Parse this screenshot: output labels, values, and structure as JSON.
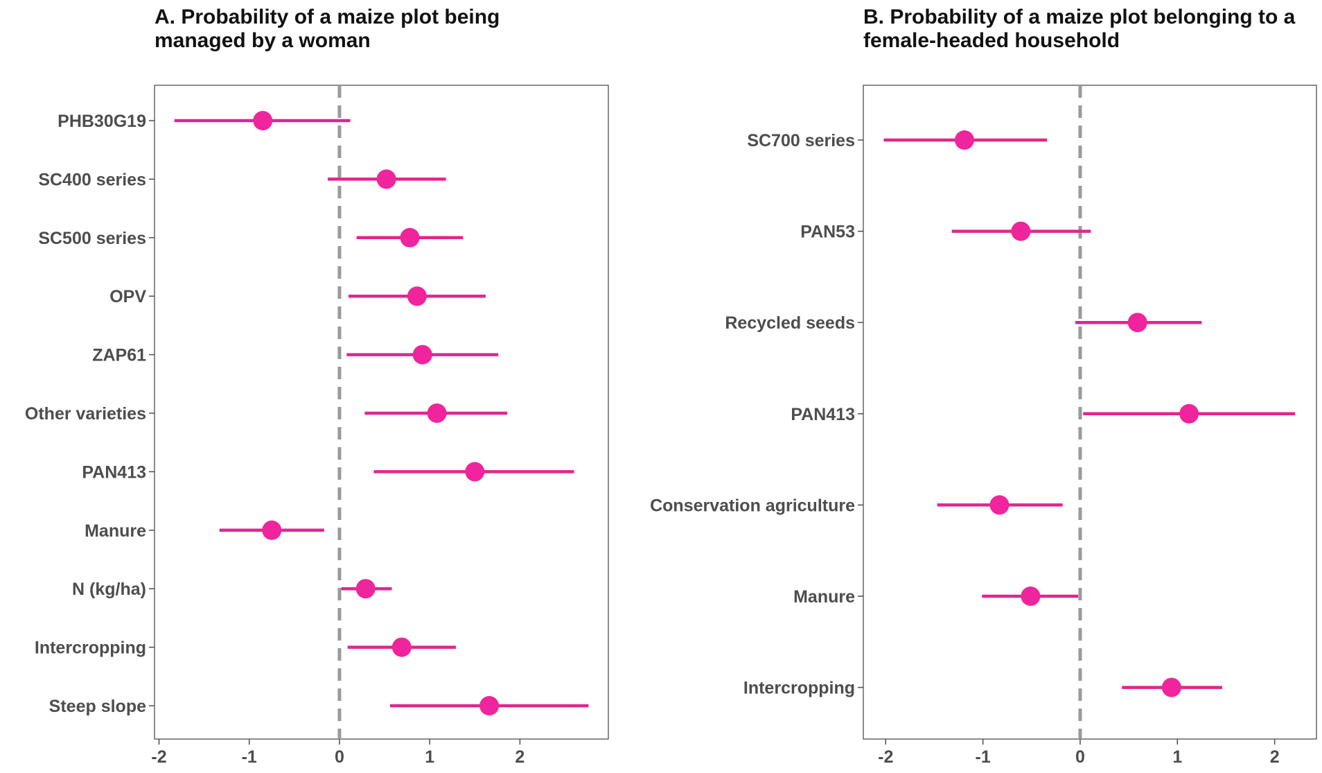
{
  "colors": {
    "point": "#f0249c",
    "ci": "#e0268f",
    "zero_line": "#9a9a9a",
    "frame": "#4d4d4d"
  },
  "chart_data": [
    {
      "type": "scatter",
      "subtype": "coefficient-plot",
      "title": "A. Probability of a maize plot being managed by a woman",
      "xlabel": "",
      "ylabel": "",
      "xlim": [
        -2.05,
        2.98
      ],
      "xticks": [
        -2,
        -1,
        0,
        1,
        2
      ],
      "grid": false,
      "legend": "none",
      "reference_line": 0,
      "categories": [
        "PHB30G19",
        "SC400 series",
        "SC500 series",
        "OPV",
        "ZAP61",
        "Other varieties",
        "PAN413",
        "Manure",
        "N (kg/ha)",
        "Intercropping",
        "Steep slope"
      ],
      "estimates": [
        -0.85,
        0.52,
        0.78,
        0.86,
        0.92,
        1.08,
        1.5,
        -0.75,
        0.29,
        0.69,
        1.66
      ],
      "lower": [
        -1.83,
        -0.13,
        0.19,
        0.1,
        0.08,
        0.28,
        0.38,
        -1.33,
        0.02,
        0.09,
        0.56
      ],
      "upper": [
        0.12,
        1.18,
        1.37,
        1.62,
        1.76,
        1.86,
        2.6,
        -0.17,
        0.58,
        1.29,
        2.76
      ]
    },
    {
      "type": "scatter",
      "subtype": "coefficient-plot",
      "title": "B. Probability of a maize plot belonging to a female-headed household",
      "xlabel": "",
      "ylabel": "",
      "xlim": [
        -2.23,
        2.43
      ],
      "xticks": [
        -2,
        -1,
        0,
        1,
        2
      ],
      "grid": false,
      "legend": "none",
      "reference_line": 0,
      "categories": [
        "SC700 series",
        "PAN53",
        "Recycled seeds",
        "PAN413",
        "Conservation agriculture",
        "Manure",
        "Intercropping"
      ],
      "estimates": [
        -1.19,
        -0.61,
        0.59,
        1.12,
        -0.83,
        -0.51,
        0.94
      ],
      "lower": [
        -2.02,
        -1.32,
        -0.05,
        0.03,
        -1.47,
        -1.01,
        0.43
      ],
      "upper": [
        -0.34,
        0.11,
        1.25,
        2.21,
        -0.18,
        -0.02,
        1.46
      ]
    }
  ]
}
